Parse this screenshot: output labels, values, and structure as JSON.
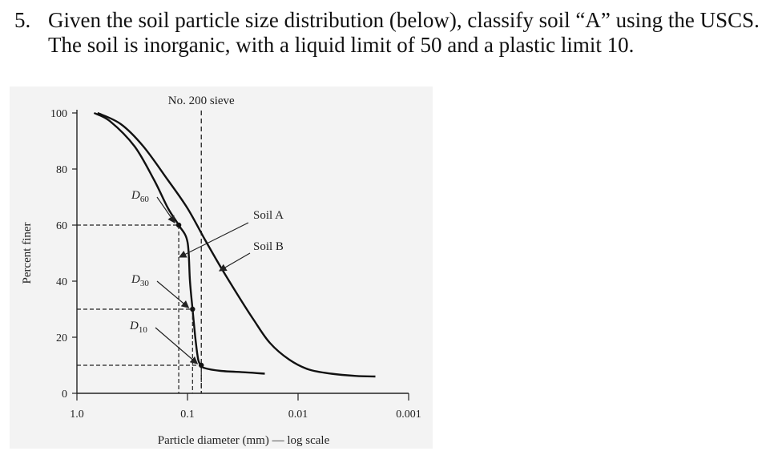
{
  "question": {
    "number": "5.",
    "line1": "Given the soil particle size distribution (below), classify soil “A” using the USCS.",
    "line2": "The soil is inorganic, with a liquid limit of 50 and a plastic limit 10."
  },
  "chart_data": {
    "type": "line",
    "title": "",
    "xlabel": "Particle diameter (mm) — log scale",
    "ylabel": "Percent finer",
    "x_scale": "log",
    "x_reversed": true,
    "xlim": [
      1.0,
      0.001
    ],
    "ylim": [
      0,
      100
    ],
    "x_ticks": [
      1.0,
      0.1,
      0.01,
      0.001
    ],
    "x_tick_labels": [
      "1.0",
      "0.1",
      "0.01",
      "0.001"
    ],
    "y_ticks": [
      0,
      20,
      40,
      60,
      80,
      100
    ],
    "y_tick_labels": [
      "0",
      "20",
      "40",
      "60",
      "80",
      "100"
    ],
    "series": [
      {
        "name": "Soil A",
        "x": [
          0.7,
          0.5,
          0.3,
          0.2,
          0.15,
          0.12,
          0.1,
          0.095,
          0.09,
          0.085,
          0.08,
          0.075,
          0.07,
          0.05,
          0.03,
          0.02
        ],
        "y": [
          100,
          97,
          88,
          76,
          66,
          60,
          54,
          40,
          30,
          20,
          12,
          10,
          9,
          8,
          7.5,
          7
        ]
      },
      {
        "name": "Soil B",
        "x": [
          0.65,
          0.4,
          0.25,
          0.15,
          0.1,
          0.07,
          0.05,
          0.035,
          0.025,
          0.018,
          0.012,
          0.008,
          0.005,
          0.003,
          0.002
        ],
        "y": [
          100,
          96,
          88,
          76,
          66,
          55,
          45,
          35,
          26,
          18,
          12,
          8.5,
          7,
          6.2,
          6
        ]
      }
    ],
    "reference_lines": [
      {
        "label": "No. 200 sieve",
        "x": 0.075,
        "style": "dashed"
      }
    ],
    "markers": [
      {
        "label": "D60",
        "x": 0.12,
        "y": 60
      },
      {
        "label": "D30",
        "x": 0.09,
        "y": 30
      },
      {
        "label": "D10",
        "x": 0.075,
        "y": 10
      }
    ],
    "annotations": [
      "No. 200 sieve",
      "Soil A",
      "Soil B"
    ]
  }
}
